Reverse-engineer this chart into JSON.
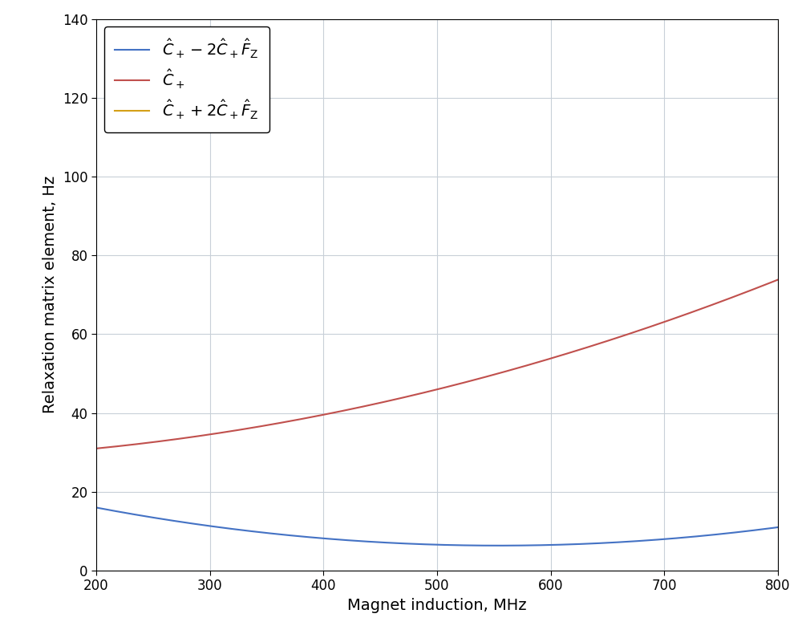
{
  "xlabel": "Magnet induction, MHz",
  "ylabel": "Relaxation matrix element, Hz",
  "xlim": [
    200,
    800
  ],
  "ylim": [
    0,
    140
  ],
  "xticks": [
    200,
    300,
    400,
    500,
    600,
    700,
    800
  ],
  "yticks": [
    0,
    20,
    40,
    60,
    80,
    100,
    120,
    140
  ],
  "line1_color": "#4472C4",
  "line2_color": "#C0504D",
  "line3_color": "#D4A017",
  "legend1": "$\\hat{C}_+ - 2\\hat{C}_+\\hat{F}_\\mathrm{Z}$",
  "legend2": "$\\hat{C}_+$",
  "legend3": "$\\hat{C}_+ + 2\\hat{C}_+\\hat{F}_\\mathrm{Z}$",
  "background_color": "#FFFFFF",
  "grid_color": "#C8D0D8"
}
